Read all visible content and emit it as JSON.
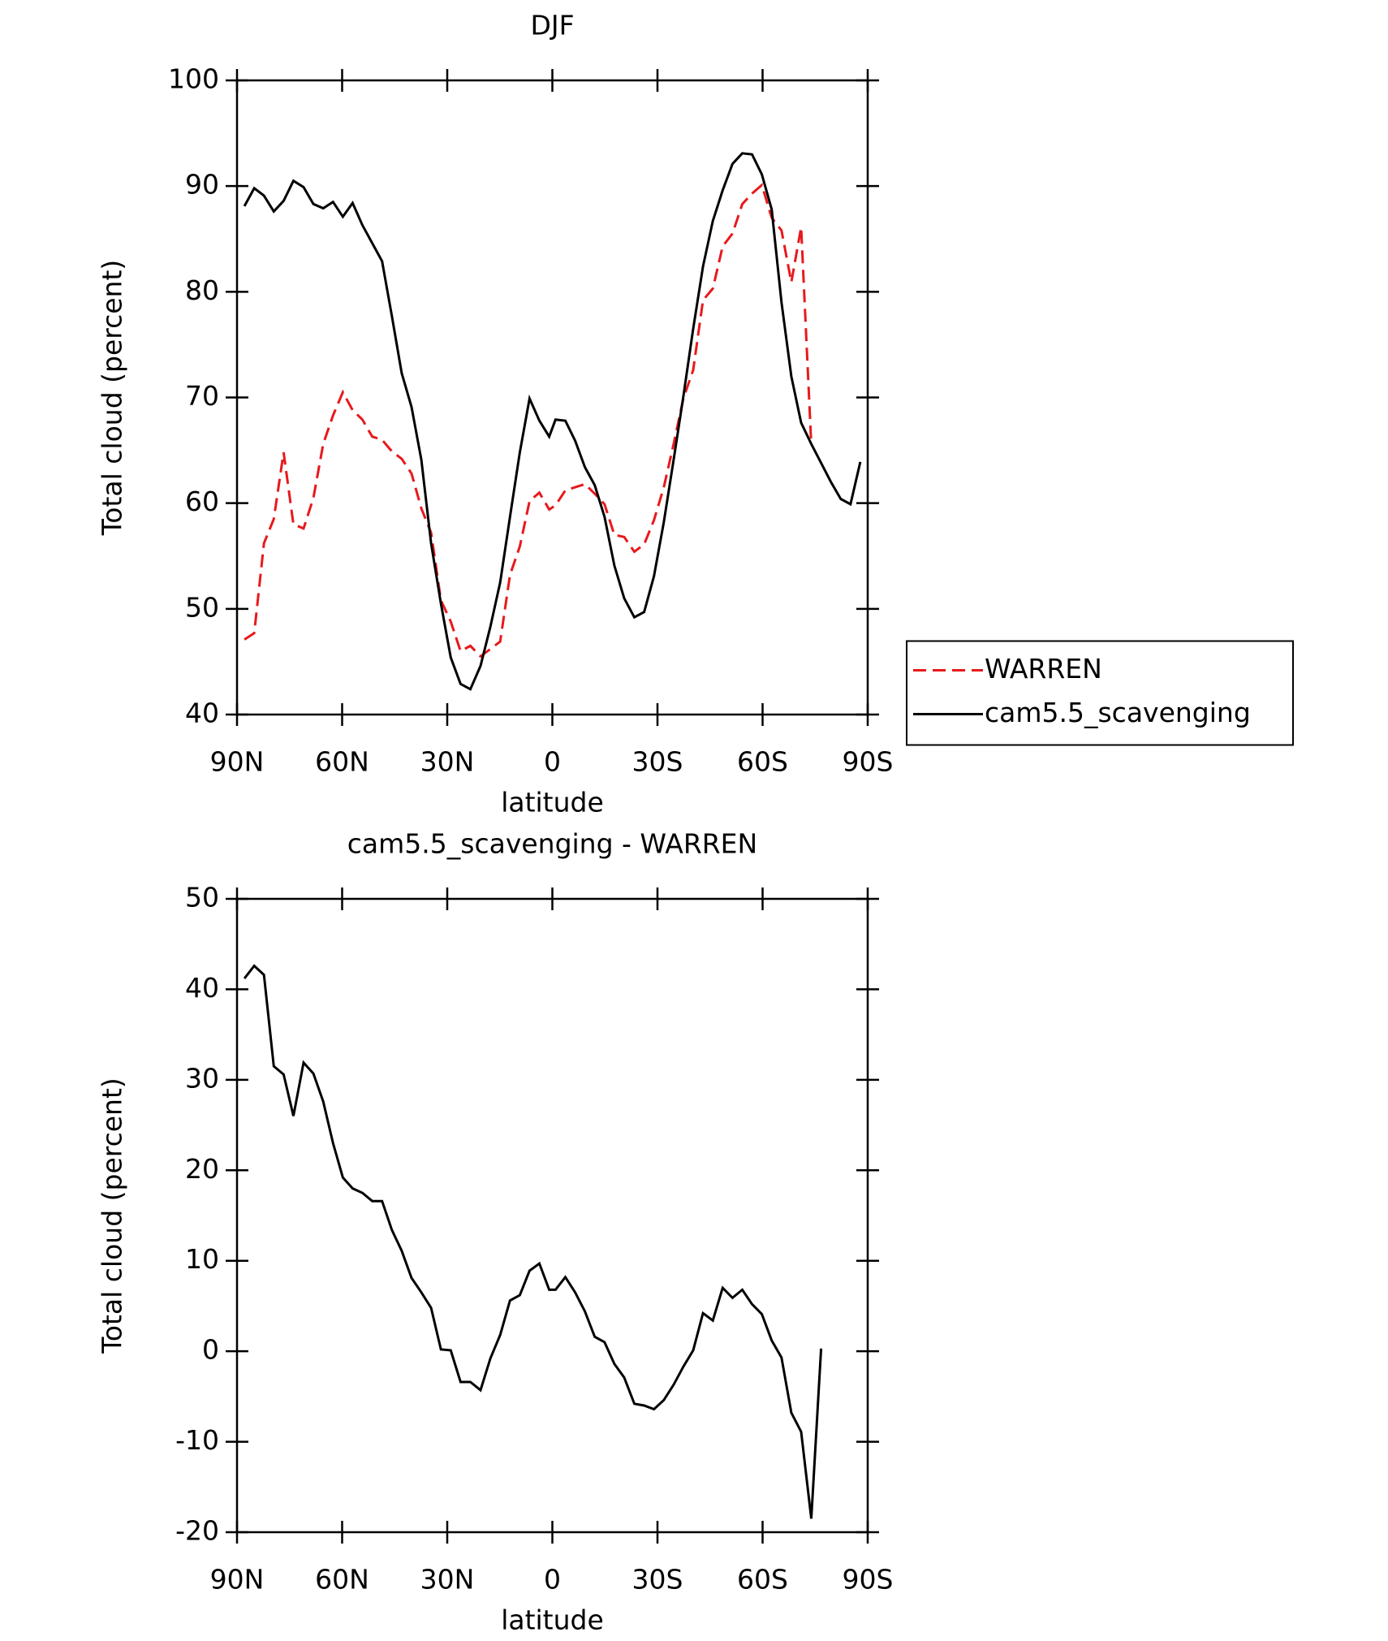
{
  "chart_data": [
    {
      "type": "line",
      "title": "DJF",
      "xlabel": "latitude",
      "ylabel": "Total cloud (percent)",
      "xlim": [
        90,
        -90
      ],
      "xticks": [
        {
          "value": 90,
          "label": "90N"
        },
        {
          "value": 60,
          "label": "60N"
        },
        {
          "value": 30,
          "label": "30N"
        },
        0,
        {
          "value": -30,
          "label": "30S"
        },
        {
          "value": -60,
          "label": "60S"
        },
        {
          "value": -90,
          "label": "90S"
        }
      ],
      "ylim": [
        40,
        100
      ],
      "yticks": [
        40,
        50,
        60,
        70,
        80,
        90,
        100
      ],
      "legend": "right",
      "x": [
        87.9,
        85.1,
        82.3,
        79.5,
        76.7,
        73.9,
        71.0,
        68.2,
        65.4,
        62.6,
        59.8,
        57.0,
        54.2,
        51.4,
        48.6,
        45.8,
        43.0,
        40.2,
        37.4,
        34.6,
        31.8,
        29.0,
        26.2,
        23.4,
        20.5,
        17.7,
        14.9,
        12.1,
        9.3,
        6.5,
        3.7,
        0.9,
        -0.9,
        -3.7,
        -6.5,
        -9.3,
        -12.1,
        -14.9,
        -17.7,
        -20.5,
        -23.4,
        -26.2,
        -29.0,
        -31.8,
        -34.6,
        -37.4,
        -40.2,
        -43.0,
        -45.8,
        -48.6,
        -51.4,
        -54.2,
        -57.0,
        -59.8,
        -62.6,
        -65.4,
        -68.2,
        -71.0,
        -73.9,
        -76.7,
        -79.5,
        -82.3,
        -85.1,
        -87.9
      ],
      "series": [
        {
          "name": "WARREN",
          "color": "#e8191c",
          "dashed": true,
          "values": [
            47.1,
            47.7,
            56.2,
            58.5,
            64.8,
            58.0,
            57.6,
            60.5,
            65.6,
            68.3,
            70.5,
            68.8,
            67.9,
            66.3,
            66.0,
            64.9,
            64.2,
            62.8,
            59.5,
            57.2,
            50.8,
            48.8,
            46.0,
            46.5,
            45.5,
            46.2,
            46.9,
            53.2,
            55.9,
            60.2,
            61.0,
            59.4,
            59.8,
            61.2,
            61.5,
            61.8,
            60.9,
            59.9,
            57.0,
            56.8,
            55.4,
            56.1,
            58.4,
            61.5,
            65.6,
            69.9,
            72.6,
            79.2,
            80.3,
            84.3,
            85.5,
            88.3,
            89.3,
            90.1,
            87.0,
            85.8,
            80.9,
            86.1,
            65.5,
            null,
            null,
            null,
            null,
            null
          ]
        },
        {
          "name": "cam5.5_scavenging",
          "color": "#000000",
          "dashed": false,
          "values": [
            88.1,
            89.8,
            89.1,
            87.6,
            88.6,
            90.5,
            89.9,
            88.3,
            87.9,
            88.5,
            87.1,
            88.4,
            86.3,
            84.6,
            82.9,
            77.7,
            72.3,
            69.1,
            64.1,
            56.2,
            50.5,
            45.4,
            42.9,
            42.4,
            44.6,
            48.3,
            52.5,
            58.7,
            64.8,
            69.9,
            67.8,
            66.3,
            67.9,
            67.8,
            65.9,
            63.4,
            61.7,
            58.7,
            54.1,
            51.0,
            49.2,
            49.7,
            53.1,
            58.2,
            64.1,
            70.1,
            76.5,
            82.4,
            86.7,
            89.6,
            92.1,
            93.1,
            93.0,
            91.1,
            87.8,
            79.0,
            72.0,
            67.6,
            65.6,
            63.8,
            62.0,
            60.4,
            59.9,
            63.9
          ]
        }
      ]
    },
    {
      "type": "line",
      "title": "cam5.5_scavenging - WARREN",
      "xlabel": "latitude",
      "ylabel": "Total cloud (percent)",
      "xlim": [
        90,
        -90
      ],
      "xticks": [
        {
          "value": 90,
          "label": "90N"
        },
        {
          "value": 60,
          "label": "60N"
        },
        {
          "value": 30,
          "label": "30N"
        },
        0,
        {
          "value": -30,
          "label": "30S"
        },
        {
          "value": -60,
          "label": "60S"
        },
        {
          "value": -90,
          "label": "90S"
        }
      ],
      "ylim": [
        -20,
        50
      ],
      "yticks": [
        -20,
        -10,
        0,
        10,
        20,
        30,
        40,
        50
      ],
      "x": [
        87.9,
        85.1,
        82.3,
        79.5,
        76.7,
        73.9,
        71.0,
        68.2,
        65.4,
        62.6,
        59.8,
        57.0,
        54.2,
        51.4,
        48.6,
        45.8,
        43.0,
        40.2,
        37.4,
        34.6,
        31.8,
        29.0,
        26.2,
        23.4,
        20.5,
        17.7,
        14.9,
        12.1,
        9.3,
        6.5,
        3.7,
        0.9,
        -0.9,
        -3.7,
        -6.5,
        -9.3,
        -12.1,
        -14.9,
        -17.7,
        -20.5,
        -23.4,
        -26.2,
        -29.0,
        -31.8,
        -34.6,
        -37.4,
        -40.2,
        -43.0,
        -45.8,
        -48.6,
        -51.4,
        -54.2,
        -57.0,
        -59.8,
        -62.6,
        -65.4,
        -68.2,
        -71.0,
        -73.9,
        -76.7,
        -79.5,
        -82.3,
        -85.1,
        -87.9
      ],
      "series": [
        {
          "color": "#000000",
          "dashed": false,
          "values": [
            41.2,
            42.6,
            41.6,
            31.5,
            30.6,
            26.0,
            31.9,
            30.7,
            27.6,
            23.0,
            19.2,
            18.0,
            17.5,
            16.6,
            16.6,
            13.4,
            11.1,
            8.1,
            6.5,
            4.8,
            0.2,
            0.1,
            -3.4,
            -3.4,
            -4.3,
            -0.8,
            1.8,
            5.6,
            6.2,
            8.9,
            9.7,
            6.8,
            6.8,
            8.2,
            6.5,
            4.4,
            1.6,
            1.0,
            -1.4,
            -2.9,
            -5.8,
            -6.0,
            -6.4,
            -5.4,
            -3.7,
            -1.7,
            0.1,
            4.2,
            3.4,
            7.0,
            5.9,
            6.8,
            5.2,
            4.1,
            1.2,
            -0.7,
            -6.8,
            -8.9,
            -18.5,
            0.3,
            null,
            null,
            null,
            null
          ]
        }
      ]
    }
  ]
}
